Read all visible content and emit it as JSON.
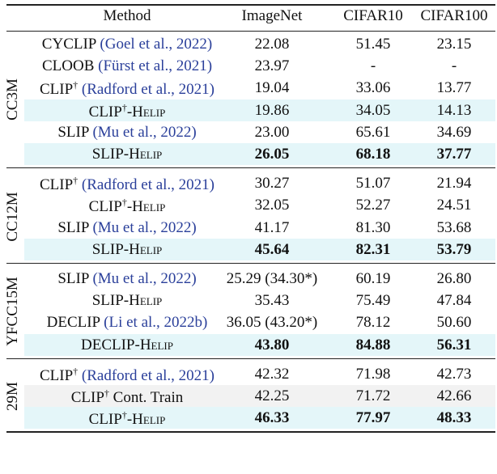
{
  "table": {
    "headers": [
      "Method",
      "ImageNet",
      "CIFAR10",
      "CIFAR100"
    ],
    "groups": [
      {
        "label": "CC3M",
        "rows": [
          {
            "method": [
              {
                "text": "CYCLIP "
              },
              {
                "text": "(Goel et al., 2022)",
                "cite": true
              }
            ],
            "values": [
              "22.08",
              "51.45",
              "23.15"
            ]
          },
          {
            "method": [
              {
                "text": "CLOOB "
              },
              {
                "text": "(Fürst et al., 2021)",
                "cite": true
              }
            ],
            "values": [
              "23.97",
              "-",
              "-"
            ]
          },
          {
            "method": [
              {
                "text": "CLIP"
              },
              {
                "text": "†",
                "sup": true
              },
              {
                "text": " "
              },
              {
                "text": "(Radford et al., 2021)",
                "cite": true
              }
            ],
            "values": [
              "19.04",
              "33.06",
              "13.77"
            ]
          },
          {
            "method": [
              {
                "text": "CLIP"
              },
              {
                "text": "†",
                "sup": true
              },
              {
                "text": "-Helip",
                "sc": true
              }
            ],
            "values": [
              "19.86",
              "34.05",
              "14.13"
            ],
            "shade": "#e4f6f9"
          },
          {
            "method": [
              {
                "text": "SLIP "
              },
              {
                "text": "(Mu et al., 2022)",
                "cite": true
              }
            ],
            "values": [
              "23.00",
              "65.61",
              "34.69"
            ]
          },
          {
            "method": [
              {
                "text": "SLIP-Helip",
                "sc": true
              }
            ],
            "values": [
              "26.05",
              "68.18",
              "37.77"
            ],
            "shade": "#e4f6f9",
            "bold": true
          }
        ]
      },
      {
        "label": "CC12M",
        "rows": [
          {
            "method": [
              {
                "text": "CLIP"
              },
              {
                "text": "†",
                "sup": true
              },
              {
                "text": " "
              },
              {
                "text": "(Radford et al., 2021)",
                "cite": true
              }
            ],
            "values": [
              "30.27",
              "51.07",
              "21.94"
            ]
          },
          {
            "method": [
              {
                "text": "CLIP"
              },
              {
                "text": "†",
                "sup": true
              },
              {
                "text": "-Helip",
                "sc": true
              }
            ],
            "values": [
              "32.05",
              "52.27",
              "24.51"
            ]
          },
          {
            "method": [
              {
                "text": "SLIP "
              },
              {
                "text": "(Mu et al., 2022)",
                "cite": true
              }
            ],
            "values": [
              "41.17",
              "81.30",
              "53.68"
            ]
          },
          {
            "method": [
              {
                "text": "SLIP-Helip",
                "sc": true
              }
            ],
            "values": [
              "45.64",
              "82.31",
              "53.79"
            ],
            "shade": "#e4f6f9",
            "bold": true
          }
        ]
      },
      {
        "label": "YFCC15M",
        "rows": [
          {
            "method": [
              {
                "text": "SLIP "
              },
              {
                "text": "(Mu et al., 2022)",
                "cite": true
              }
            ],
            "values": [
              "25.29 (34.30*)",
              "60.19",
              "26.80"
            ]
          },
          {
            "method": [
              {
                "text": "SLIP-Helip",
                "sc": true
              }
            ],
            "values": [
              "35.43",
              "75.49",
              "47.84"
            ]
          },
          {
            "method": [
              {
                "text": "DECLIP "
              },
              {
                "text": "(Li et al., 2022b)",
                "cite": true
              }
            ],
            "values": [
              "36.05 (43.20*)",
              "78.12",
              "50.60"
            ]
          },
          {
            "method": [
              {
                "text": "DECLIP-Helip",
                "sc": true
              }
            ],
            "values": [
              "43.80",
              "84.88",
              "56.31"
            ],
            "shade": "#e4f6f9",
            "bold": true
          }
        ]
      },
      {
        "label": "29M",
        "rows": [
          {
            "method": [
              {
                "text": "CLIP"
              },
              {
                "text": "†",
                "sup": true
              },
              {
                "text": " "
              },
              {
                "text": "(Radford et al., 2021)",
                "cite": true
              }
            ],
            "values": [
              "42.32",
              "71.98",
              "42.73"
            ]
          },
          {
            "method": [
              {
                "text": "CLIP"
              },
              {
                "text": "†",
                "sup": true
              },
              {
                "text": " Cont. Train"
              }
            ],
            "values": [
              "42.25",
              "71.72",
              "42.66"
            ],
            "shade": "#f2f2f2"
          },
          {
            "method": [
              {
                "text": "CLIP"
              },
              {
                "text": "†",
                "sup": true
              },
              {
                "text": "-Helip",
                "sc": true
              }
            ],
            "values": [
              "46.33",
              "77.97",
              "48.33"
            ],
            "shade": "#e4f6f9",
            "bold": true
          }
        ]
      }
    ]
  }
}
